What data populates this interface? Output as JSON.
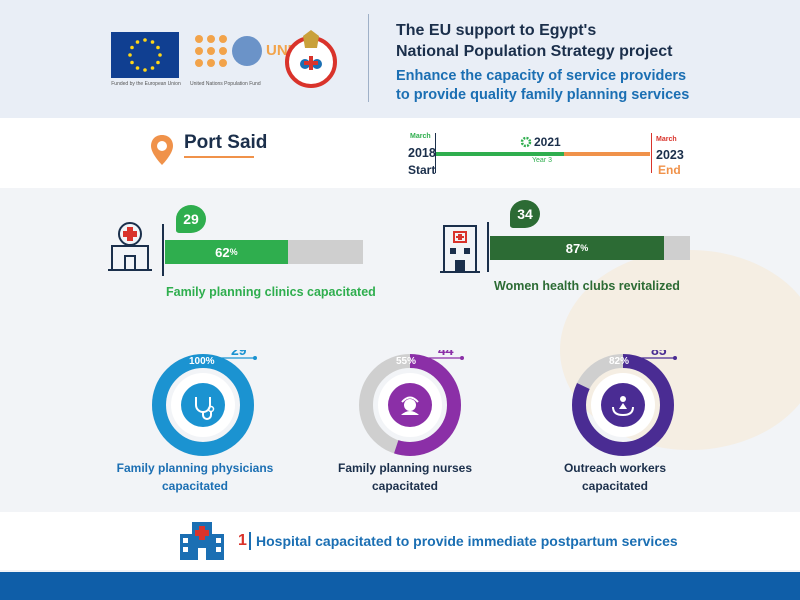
{
  "header": {
    "eu_caption": "Funded by the European Union",
    "unfpa_name": "UNFPA",
    "unfpa_caption": "United Nations Population Fund",
    "title_line1": "The EU support to Egypt's",
    "title_line2": "National Population Strategy project",
    "subtitle_line1": "Enhance the capacity of service providers",
    "subtitle_line2": "to provide quality family planning services"
  },
  "location": {
    "name": "Port Said",
    "icon": "map-pin-icon"
  },
  "timeline": {
    "start_month": "March",
    "start_year": "2018",
    "start_label": "Start",
    "mid_year": "2021",
    "mid_label": "Year 3",
    "end_month": "March",
    "end_year": "2023",
    "end_label": "End",
    "progress_fraction": 0.6
  },
  "bars": [
    {
      "count": "29",
      "percent_value": 62,
      "percent": "62",
      "unit": "%",
      "caption": "Family planning clinics capacitated",
      "color": "#2fae4e",
      "icon": "clinic-icon"
    },
    {
      "count": "34",
      "percent_value": 87,
      "percent": "87",
      "unit": "%",
      "caption": "Women health clubs revitalized",
      "color": "#2c6b34",
      "icon": "health-club-icon"
    }
  ],
  "donuts": [
    {
      "count": "29",
      "percent_value": 100,
      "percent": "100",
      "unit": "%",
      "caption_line1": "Family planning physicians",
      "caption_line2": "capacitated",
      "color": "#1b93d1",
      "text_color": "#1b6fb3",
      "icon": "stethoscope-icon"
    },
    {
      "count": "44",
      "percent_value": 55,
      "percent": "55",
      "unit": "%",
      "caption_line1": "Family planning nurses",
      "caption_line2": "capacitated",
      "color": "#8b2fa7",
      "text_color": "#1b2f4b",
      "icon": "nurse-icon"
    },
    {
      "count": "85",
      "percent_value": 82,
      "percent": "82",
      "unit": "%",
      "caption_line1": "Outreach workers",
      "caption_line2": "capacitated",
      "color": "#4a2c93",
      "text_color": "#1b2f4b",
      "icon": "outreach-icon"
    }
  ],
  "hospital": {
    "count": "1",
    "text": "Hospital capacitated to provide immediate postpartum services",
    "icon": "hospital-icon"
  },
  "colors": {
    "orange": "#f0924a",
    "green": "#2fae4e",
    "navy": "#1b2f4b",
    "blue": "#1b6fb3"
  }
}
